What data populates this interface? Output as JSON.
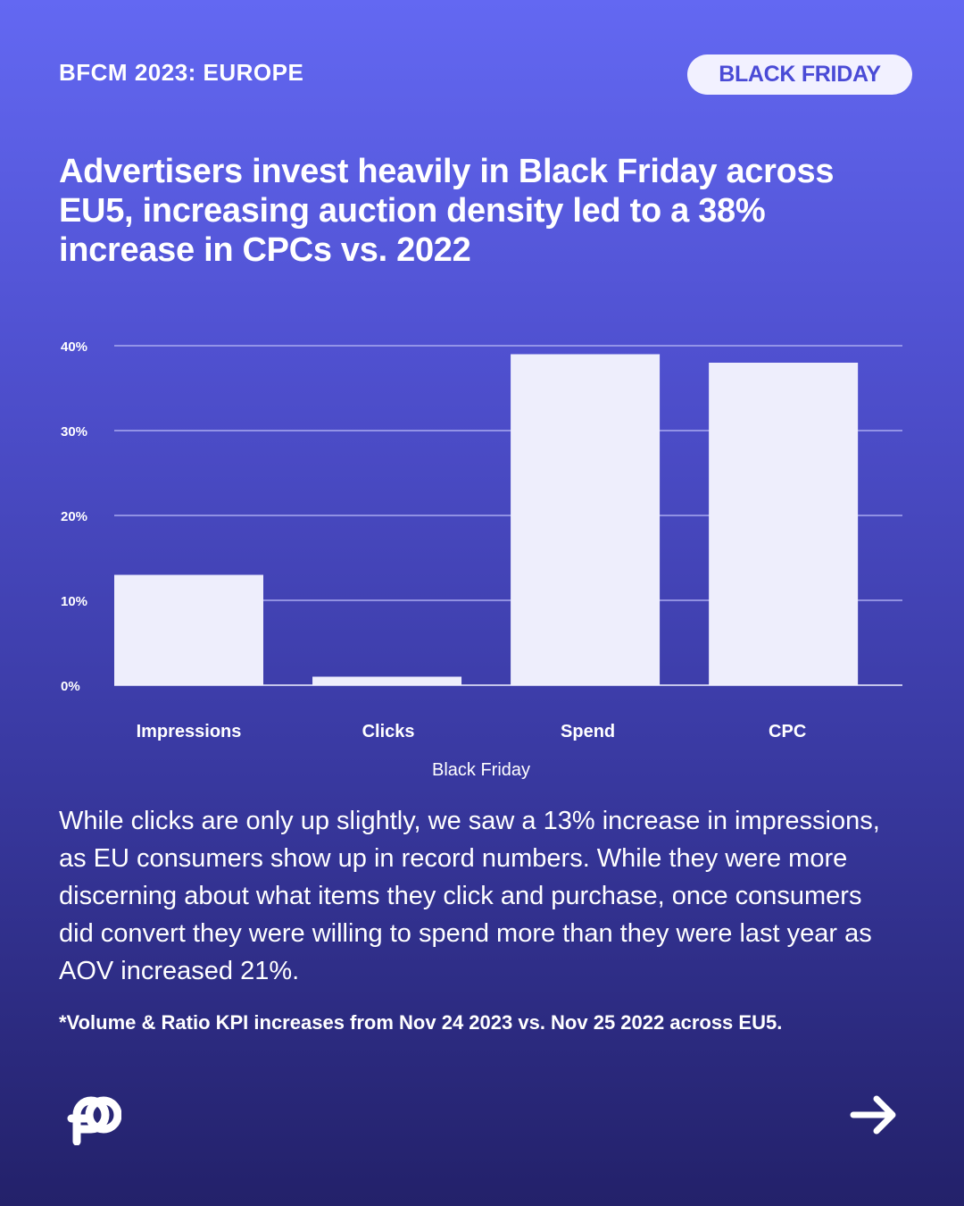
{
  "header": {
    "kicker": "BFCM 2023: EUROPE",
    "badge": "BLACK FRIDAY"
  },
  "headline": "Advertisers invest heavily in Black Friday across EU5, increasing auction density led to a 38% increase in CPCs vs. 2022",
  "chart_data": {
    "type": "bar",
    "categories": [
      "Impressions",
      "Clicks",
      "Spend",
      "CPC"
    ],
    "values": [
      13,
      1,
      39,
      38
    ],
    "xlabel": "Black Friday",
    "ylabel": "",
    "ylim": [
      0,
      40
    ],
    "yticks": [
      0,
      10,
      20,
      30,
      40
    ],
    "ytick_labels": [
      "0%",
      "10%",
      "20%",
      "30%",
      "40%"
    ],
    "grid": true,
    "colors": {
      "bar": "#eeeefc",
      "grid": "#a9aaf0",
      "axis": "#f2f2ff",
      "text": "#ffffff"
    }
  },
  "body": "While clicks are only up slightly, we saw a 13% increase in impressions, as EU consumers show up in record numbers. While they were more discerning about what items they click and purchase, once consumers did convert they were willing to spend more than they were last year as AOV increased 21%.",
  "footnote": "*Volume & Ratio KPI increases from Nov 24 2023 vs. Nov 25 2022 across EU5.",
  "footer": {
    "logo_icon": "brand-logo-icon",
    "next_icon": "arrow-right-icon"
  }
}
